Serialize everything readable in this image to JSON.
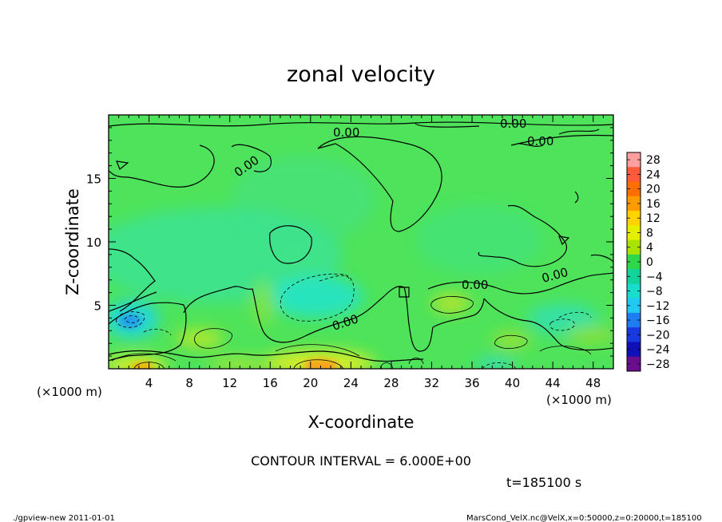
{
  "chart_data": {
    "type": "heatmap",
    "subtype": "filled contour",
    "title": "zonal velocity",
    "xlabel": "X-coordinate",
    "ylabel": "Z-coordinate",
    "x_unit_label": "(×1000 m)",
    "y_unit_label": "(×1000 m)",
    "xlim": [
      0,
      50
    ],
    "ylim": [
      0,
      20
    ],
    "x_ticks": [
      "4",
      "8",
      "12",
      "16",
      "20",
      "24",
      "28",
      "32",
      "36",
      "40",
      "44",
      "48"
    ],
    "y_ticks": [
      "5",
      "10",
      "15"
    ],
    "colorbar_levels": [
      "28",
      "24",
      "20",
      "16",
      "12",
      "8",
      "4",
      "0",
      "−4",
      "−8",
      "−12",
      "−16",
      "−20",
      "−24",
      "−28"
    ],
    "colorbar_colors": [
      "#ff9f9f",
      "#ff5a3c",
      "#ff6e00",
      "#ff9a00",
      "#ffd200",
      "#e6ee00",
      "#a8e400",
      "#2ed84a",
      "#12d49a",
      "#18dccc",
      "#20c8f2",
      "#1e7bf0",
      "#1838e0",
      "#1010b8",
      "#6a0d8e"
    ],
    "contour_interval_text": "CONTOUR INTERVAL = 6.000E+00",
    "contour_labels": [
      "0.00",
      "0.00",
      "0.00",
      "0.00",
      "0.00",
      "0.00",
      "0.00"
    ],
    "grid": false
  },
  "time_label": "t=185100 s",
  "footer": {
    "left": "./gpview-new   2011-01-01",
    "right": "MarsCond_VelX.nc@VelX,x=0:50000,z=0:20000,t=185100"
  }
}
